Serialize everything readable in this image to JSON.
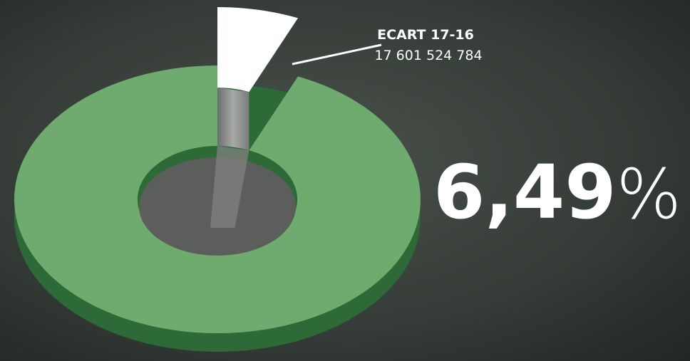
{
  "chart_data": {
    "type": "pie",
    "categories": [
      null,
      "ECART 17-16"
    ],
    "values": [
      93.51,
      6.49
    ],
    "value_labels": [
      null,
      "6,49%"
    ],
    "colors": [
      "#6fab6f",
      "#ffffff"
    ],
    "annotations": [
      "17 601 524 784"
    ],
    "donut": true
  }
}
